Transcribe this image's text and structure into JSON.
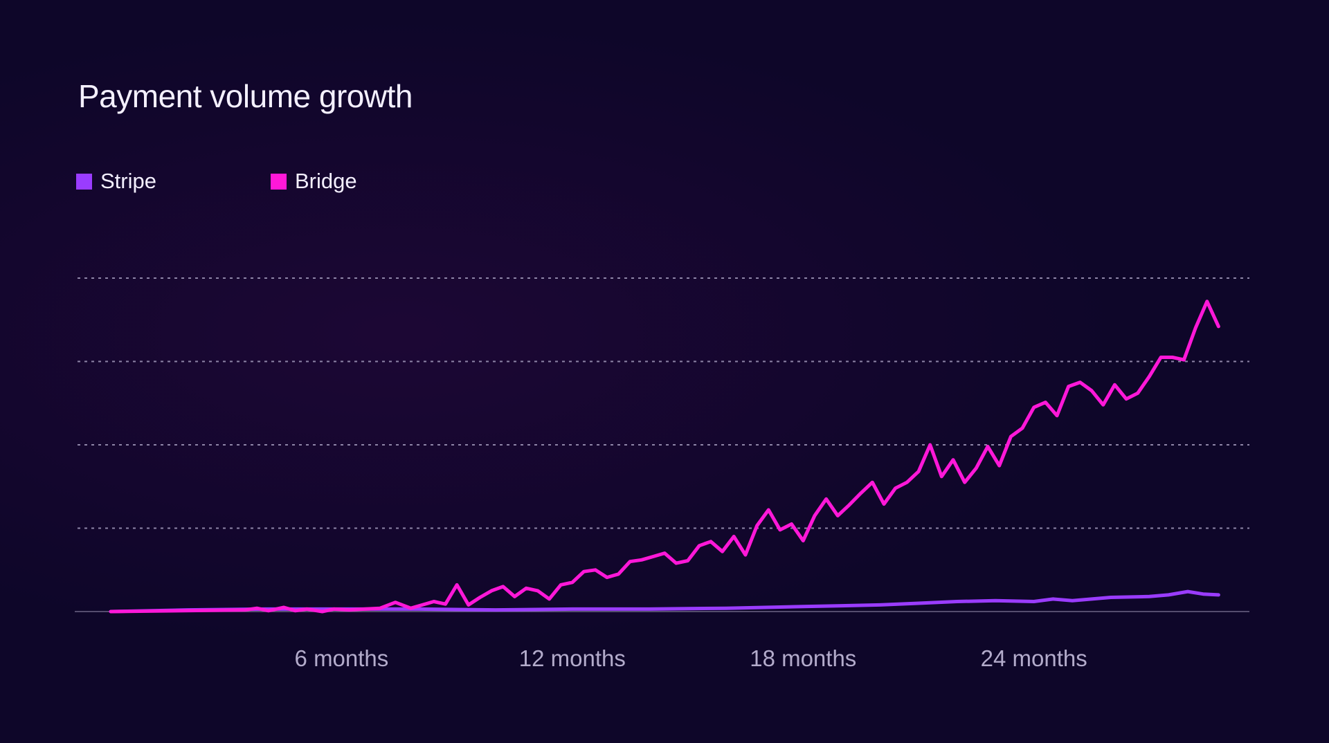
{
  "chart_data": {
    "type": "line",
    "title": "Payment volume growth",
    "xlabel": "",
    "ylabel": "",
    "x_ticks": [
      {
        "x": 6,
        "label": "6 months"
      },
      {
        "x": 12,
        "label": "12 months"
      },
      {
        "x": 18,
        "label": "18 months"
      },
      {
        "x": 24,
        "label": "24 months"
      }
    ],
    "xlim": [
      0,
      28.9
    ],
    "ylim": [
      0,
      4
    ],
    "y_gridlines": [
      1,
      2,
      3,
      4
    ],
    "grid": true,
    "legend_position": "top-left",
    "series": [
      {
        "name": "Stripe",
        "color": "#9a3cff",
        "x": [
          0,
          2,
          4,
          6,
          8,
          10,
          12,
          14,
          16,
          18,
          19,
          20,
          21,
          22,
          23,
          24,
          24.5,
          25,
          26,
          27,
          27.5,
          28,
          28.4,
          28.8
        ],
        "y": [
          0,
          0.02,
          0.03,
          0.03,
          0.03,
          0.02,
          0.03,
          0.03,
          0.04,
          0.06,
          0.07,
          0.08,
          0.1,
          0.12,
          0.13,
          0.12,
          0.15,
          0.13,
          0.17,
          0.18,
          0.2,
          0.24,
          0.21,
          0.2
        ]
      },
      {
        "name": "Bridge",
        "color": "#ff18d8",
        "x": [
          0,
          3.5,
          3.8,
          4.1,
          4.5,
          4.8,
          5.1,
          5.5,
          5.8,
          6.2,
          6.6,
          7,
          7.4,
          7.8,
          8.1,
          8.4,
          8.7,
          9,
          9.3,
          9.6,
          9.9,
          10.2,
          10.5,
          10.8,
          11.1,
          11.4,
          11.7,
          12,
          12.3,
          12.6,
          12.9,
          13.2,
          13.5,
          13.8,
          14.1,
          14.4,
          14.7,
          15,
          15.3,
          15.6,
          15.9,
          16.2,
          16.5,
          16.8,
          17.1,
          17.4,
          17.7,
          18,
          18.3,
          18.6,
          18.9,
          19.2,
          19.5,
          19.8,
          20.1,
          20.4,
          20.7,
          21,
          21.3,
          21.6,
          21.9,
          22.2,
          22.5,
          22.8,
          23.1,
          23.4,
          23.7,
          24,
          24.3,
          24.6,
          24.9,
          25.2,
          25.5,
          25.8,
          26.1,
          26.4,
          26.7,
          27,
          27.3,
          27.6,
          27.9,
          28.2,
          28.5,
          28.8
        ],
        "y": [
          0,
          0.02,
          0.04,
          0.01,
          0.05,
          0.01,
          0.03,
          0,
          0.03,
          0.02,
          0.03,
          0.04,
          0.11,
          0.04,
          0.08,
          0.12,
          0.09,
          0.32,
          0.08,
          0.17,
          0.25,
          0.3,
          0.18,
          0.28,
          0.25,
          0.15,
          0.32,
          0.35,
          0.48,
          0.5,
          0.41,
          0.45,
          0.6,
          0.62,
          0.66,
          0.7,
          0.58,
          0.61,
          0.79,
          0.84,
          0.72,
          0.9,
          0.68,
          1.03,
          1.22,
          0.98,
          1.05,
          0.85,
          1.15,
          1.35,
          1.15,
          1.28,
          1.42,
          1.55,
          1.29,
          1.48,
          1.55,
          1.68,
          2,
          1.62,
          1.82,
          1.55,
          1.72,
          1.98,
          1.75,
          2.1,
          2.2,
          2.45,
          2.51,
          2.35,
          2.7,
          2.75,
          2.65,
          2.48,
          2.72,
          2.55,
          2.62,
          2.82,
          3.05,
          3.05,
          3.02,
          3.4,
          3.72,
          3.42
        ]
      }
    ]
  }
}
